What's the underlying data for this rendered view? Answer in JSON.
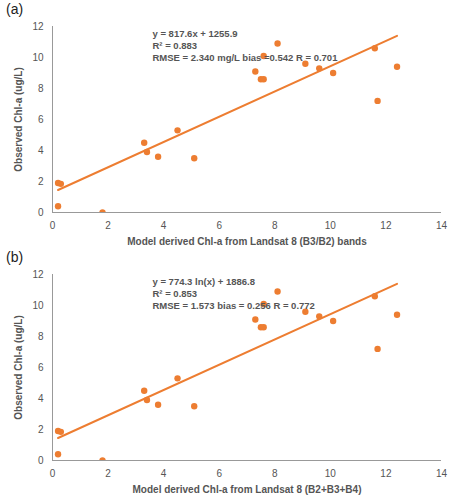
{
  "chart_data": [
    {
      "type": "scatter",
      "panel_label": "(a)",
      "x_label": "Model derived Chl-a from Landsat 8 (B3/B2) bands",
      "y_label": "Observed Chl-a (ug/L)",
      "annotations": [
        "y = 817.6x + 1255.9",
        "R² = 0.883",
        "RMSE = 2.340 mg/L bias =0.542 R = 0.701"
      ],
      "x": [
        0.2,
        0.3,
        0.2,
        1.8,
        3.3,
        3.4,
        3.8,
        4.5,
        5.1,
        7.3,
        7.5,
        7.6,
        7.6,
        8.1,
        9.1,
        9.6,
        10.1,
        11.6,
        11.7,
        12.4
      ],
      "values": [
        1.9,
        1.85,
        0.4,
        0.0,
        4.5,
        3.9,
        3.6,
        5.3,
        3.5,
        9.1,
        8.6,
        8.6,
        10.1,
        10.9,
        9.6,
        9.3,
        9.0,
        10.6,
        7.2,
        9.4
      ],
      "trend_line": {
        "x": [
          0.2,
          12.4
        ],
        "values": [
          1.45,
          11.4
        ]
      },
      "color": "#ED7D31",
      "xlim": [
        0,
        14
      ],
      "xticks": [
        0,
        2,
        4,
        6,
        8,
        10,
        12,
        14
      ],
      "ylim": [
        0,
        12
      ],
      "yticks": [
        0,
        2,
        4,
        6,
        8,
        10,
        12
      ],
      "grid": false
    },
    {
      "type": "scatter",
      "panel_label": "(b)",
      "x_label": "Model derived Chl-a from Landsat 8 (B2+B3+B4)",
      "y_label": "Observed Chl-a (ug/L)",
      "annotations": [
        "y = 774.3 ln(x) + 1886.8",
        "R² = 0.853",
        "RMSE = 1.573 bias = 0.256 R = 0.772"
      ],
      "x": [
        0.2,
        0.3,
        0.2,
        1.8,
        3.3,
        3.4,
        3.8,
        4.5,
        5.1,
        7.3,
        7.5,
        7.6,
        7.6,
        8.1,
        9.1,
        9.6,
        10.1,
        11.6,
        11.7,
        12.4
      ],
      "values": [
        1.9,
        1.85,
        0.4,
        0.0,
        4.5,
        3.9,
        3.6,
        5.3,
        3.5,
        9.1,
        8.6,
        8.6,
        10.1,
        10.9,
        9.6,
        9.3,
        9.0,
        10.6,
        7.2,
        9.4
      ],
      "trend_line": {
        "x": [
          0.2,
          12.4
        ],
        "values": [
          1.45,
          11.4
        ]
      },
      "color": "#ED7D31",
      "xlim": [
        0,
        14
      ],
      "xticks": [
        0,
        2,
        4,
        6,
        8,
        10,
        12,
        14
      ],
      "ylim": [
        0,
        12
      ],
      "yticks": [
        0,
        2,
        4,
        6,
        8,
        10,
        12
      ],
      "grid": false
    }
  ]
}
